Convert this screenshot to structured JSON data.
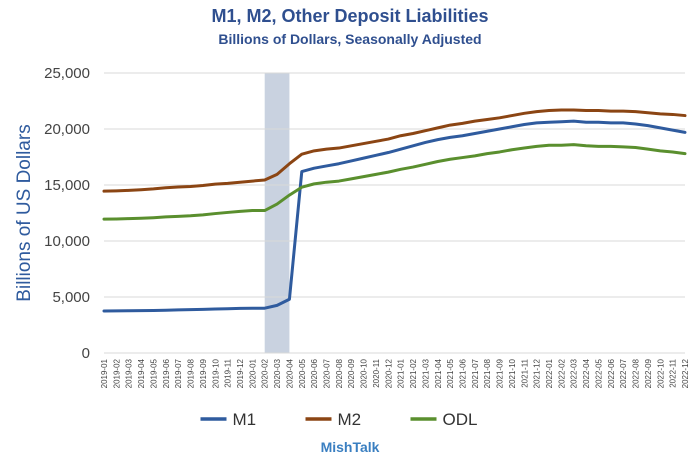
{
  "chart_data": {
    "type": "line",
    "title": "M1, M2, Other Deposit Liabilities",
    "subtitle": "Billions of Dollars, Seasonally Adjusted",
    "ylabel": "Billions of US Dollars",
    "xlabel": "",
    "ylim": [
      0,
      25000
    ],
    "yticks": [
      "0",
      "5,000",
      "10,000",
      "15,000",
      "20,000",
      "25,000"
    ],
    "grid": true,
    "legend_position": "bottom",
    "source": "MishTalk",
    "shaded_period": [
      "2020-02",
      "2020-04"
    ],
    "colors": {
      "M1": "#2f5b9e",
      "M2": "#8b4513",
      "ODL": "#5a8f2e",
      "shade": "#c9d2e0",
      "grid": "#d9d9d9"
    },
    "x": [
      "2019-01",
      "2019-02",
      "2019-03",
      "2019-04",
      "2019-05",
      "2019-06",
      "2019-07",
      "2019-08",
      "2019-09",
      "2019-10",
      "2019-11",
      "2019-12",
      "2020-01",
      "2020-02",
      "2020-03",
      "2020-04",
      "2020-05",
      "2020-06",
      "2020-07",
      "2020-08",
      "2020-09",
      "2020-10",
      "2020-11",
      "2020-12",
      "2021-01",
      "2021-02",
      "2021-03",
      "2021-04",
      "2021-05",
      "2021-06",
      "2021-07",
      "2021-08",
      "2021-09",
      "2021-10",
      "2021-11",
      "2021-12",
      "2022-01",
      "2022-02",
      "2022-03",
      "2022-04",
      "2022-05",
      "2022-06",
      "2022-07",
      "2022-08",
      "2022-09",
      "2022-10",
      "2022-11",
      "2022-12"
    ],
    "series": [
      {
        "name": "M1",
        "values": [
          3750,
          3760,
          3770,
          3780,
          3800,
          3820,
          3850,
          3870,
          3900,
          3930,
          3950,
          3980,
          4000,
          4000,
          4250,
          4800,
          16200,
          16500,
          16700,
          16900,
          17150,
          17400,
          17650,
          17900,
          18200,
          18500,
          18800,
          19050,
          19250,
          19400,
          19600,
          19800,
          20000,
          20200,
          20400,
          20550,
          20600,
          20650,
          20700,
          20600,
          20600,
          20550,
          20550,
          20450,
          20300,
          20100,
          19900,
          19700
        ]
      },
      {
        "name": "M2",
        "values": [
          14450,
          14480,
          14520,
          14580,
          14650,
          14750,
          14820,
          14870,
          14960,
          15080,
          15150,
          15250,
          15350,
          15450,
          15950,
          16900,
          17750,
          18050,
          18200,
          18300,
          18500,
          18700,
          18900,
          19100,
          19400,
          19600,
          19850,
          20100,
          20350,
          20500,
          20700,
          20850,
          21000,
          21200,
          21400,
          21550,
          21650,
          21700,
          21700,
          21650,
          21650,
          21600,
          21600,
          21550,
          21450,
          21350,
          21300,
          21200
        ]
      },
      {
        "name": "ODL",
        "values": [
          11950,
          11970,
          12000,
          12030,
          12080,
          12150,
          12200,
          12250,
          12330,
          12450,
          12550,
          12650,
          12720,
          12720,
          13300,
          14100,
          14800,
          15100,
          15250,
          15350,
          15550,
          15750,
          15950,
          16150,
          16400,
          16600,
          16850,
          17100,
          17300,
          17450,
          17600,
          17800,
          17950,
          18150,
          18300,
          18450,
          18550,
          18550,
          18600,
          18500,
          18450,
          18450,
          18400,
          18350,
          18200,
          18050,
          17950,
          17800
        ]
      }
    ]
  }
}
